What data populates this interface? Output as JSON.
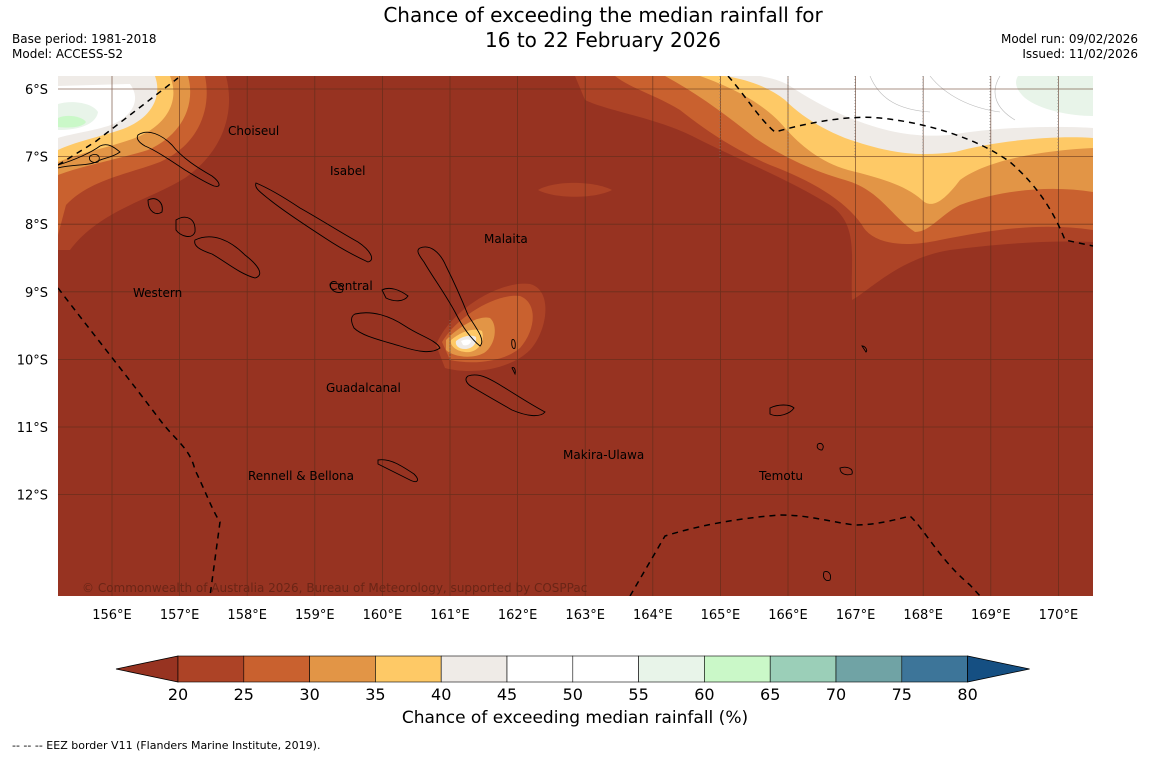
{
  "title": {
    "line1": "Chance of exceeding the median rainfall for",
    "line2": "16 to 22 February 2026"
  },
  "meta": {
    "base_period": "Base period: 1981-2018",
    "model": "Model: ACCESS-S2",
    "model_run": "Model run: 09/02/2026",
    "issued": "Issued: 11/02/2026"
  },
  "axes": {
    "lat_ticks": [
      "6°S",
      "7°S",
      "8°S",
      "9°S",
      "10°S",
      "11°S",
      "12°S"
    ],
    "lon_ticks": [
      "156°E",
      "157°E",
      "158°E",
      "159°E",
      "160°E",
      "161°E",
      "162°E",
      "163°E",
      "164°E",
      "165°E",
      "166°E",
      "167°E",
      "168°E",
      "169°E",
      "170°E"
    ]
  },
  "province_labels": [
    "Choiseul",
    "Isabel",
    "Malaita",
    "Central",
    "Western",
    "Guadalcanal",
    "Makira-Ulawa",
    "Rennell & Bellona",
    "Temotu"
  ],
  "copyright": "© Commonwealth of Australia 2026, Bureau of Meteorology, supported by COSPPac",
  "colorbar": {
    "ticks": [
      "20",
      "25",
      "30",
      "35",
      "40",
      "45",
      "50",
      "55",
      "60",
      "65",
      "70",
      "75",
      "80"
    ],
    "label": "Chance of exceeding median rainfall (%)",
    "colors": {
      "under": "#973321",
      "b20_25": "#ad4326",
      "b25_30": "#c9612f",
      "b30_35": "#e29546",
      "b35_40": "#fec966",
      "b40_45": "#efebe7",
      "b45_50": "#ffffff",
      "b50_55": "#ffffff",
      "b55_60": "#e8f4e9",
      "b60_65": "#caf8c8",
      "b65_70": "#9bcfb8",
      "b70_75": "#70a3a5",
      "b75_80": "#3d7599",
      "over": "#154f82"
    }
  },
  "footnote": "--  --  -- EEZ border V11 (Flanders Marine Institute, 2019)."
}
